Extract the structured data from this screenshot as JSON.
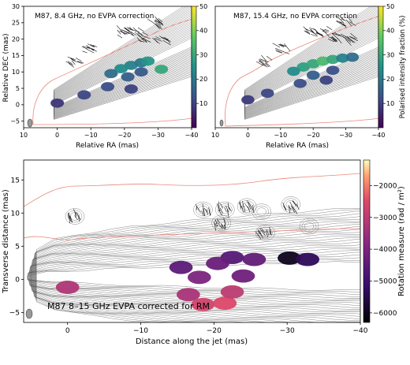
{
  "chart_data": [
    {
      "type": "heatmap",
      "title": "M87, 8.4 GHz, no EVPA correction",
      "xlabel": "Relative RA (mas)",
      "ylabel": "Relative DEC (mas)",
      "xlim": [
        10,
        -40
      ],
      "ylim": [
        -7,
        30
      ],
      "xticks": [
        10,
        0,
        -10,
        -20,
        -30,
        -40
      ],
      "xtick_labels": [
        "10",
        "0",
        "−10",
        "−20",
        "−30",
        "−40"
      ],
      "yticks": [
        -5,
        0,
        5,
        10,
        15,
        20,
        25,
        30
      ],
      "ytick_labels": [
        "−5",
        "0",
        "5",
        "10",
        "15",
        "20",
        "25",
        "30"
      ],
      "colorbar": {
        "ticks": [
          10,
          20,
          30,
          40,
          50
        ],
        "range": [
          0,
          50
        ],
        "colormap": "viridis"
      },
      "pol_blobs": [
        {
          "x": -22,
          "y": 12.0,
          "val": 22
        },
        {
          "x": -25,
          "y": 12.8,
          "val": 20
        },
        {
          "x": -19,
          "y": 11.0,
          "val": 24
        },
        {
          "x": -16,
          "y": 9.5,
          "val": 18
        },
        {
          "x": -27,
          "y": 13.3,
          "val": 26
        },
        {
          "x": -21,
          "y": 8.5,
          "val": 15
        },
        {
          "x": -25,
          "y": 10.0,
          "val": 14
        },
        {
          "x": -15,
          "y": 5.5,
          "val": 12
        },
        {
          "x": -22,
          "y": 4.8,
          "val": 10
        },
        {
          "x": -31,
          "y": 10.8,
          "val": 30
        },
        {
          "x": 0,
          "y": 0.5,
          "val": 8
        },
        {
          "x": -8,
          "y": 3.0,
          "val": 11
        }
      ]
    },
    {
      "type": "heatmap",
      "title": "M87, 15.4 GHz, no EVPA correction",
      "xlabel": "Relative RA (mas)",
      "ylabel": "",
      "xlim": [
        10,
        -40
      ],
      "ylim": [
        -7,
        30
      ],
      "xticks": [
        10,
        0,
        -10,
        -20,
        -30,
        -40
      ],
      "xtick_labels": [
        "10",
        "0",
        "−10",
        "−20",
        "−30",
        "−40"
      ],
      "colorbar": {
        "label": "Polarised intensity fraction (%)",
        "ticks": [
          10,
          20,
          30,
          40,
          50
        ],
        "range": [
          0,
          50
        ],
        "colormap": "viridis"
      },
      "pol_blobs": [
        {
          "x": -17,
          "y": 11.5,
          "val": 28
        },
        {
          "x": -20,
          "y": 12.5,
          "val": 30
        },
        {
          "x": -23,
          "y": 13.3,
          "val": 34
        },
        {
          "x": -26,
          "y": 13.8,
          "val": 30
        },
        {
          "x": -29,
          "y": 14.2,
          "val": 22
        },
        {
          "x": -14,
          "y": 10.2,
          "val": 24
        },
        {
          "x": -20,
          "y": 9.0,
          "val": 15
        },
        {
          "x": -26,
          "y": 10.5,
          "val": 12
        },
        {
          "x": -16,
          "y": 6.5,
          "val": 12
        },
        {
          "x": -24,
          "y": 7.5,
          "val": 10
        },
        {
          "x": 0,
          "y": 1.5,
          "val": 9
        },
        {
          "x": -6,
          "y": 3.5,
          "val": 11
        },
        {
          "x": -32,
          "y": 14.5,
          "val": 18
        }
      ]
    },
    {
      "type": "heatmap",
      "title": "M87 8–15 GHz EVPA corrected for RM",
      "xlabel": "Distance along the jet (mas)",
      "ylabel": "Transverse distance (mas)",
      "xlim": [
        6,
        -40
      ],
      "ylim": [
        -6.5,
        18
      ],
      "xticks": [
        0,
        -10,
        -20,
        -30,
        -40
      ],
      "xtick_labels": [
        "0",
        "−10",
        "−20",
        "−30",
        "−40"
      ],
      "yticks": [
        -5,
        0,
        5,
        10,
        15
      ],
      "ytick_labels": [
        "−5",
        "0",
        "5",
        "10",
        "15"
      ],
      "colorbar": {
        "label": "Rotation measure (rad / m²)",
        "ticks": [
          -6000,
          -5000,
          -4000,
          -3000,
          -2000
        ],
        "tick_labels": [
          "−6000",
          "−5000",
          "−4000",
          "−3000",
          "−2000"
        ],
        "range": [
          -6300,
          -1200
        ],
        "colormap": "magma"
      },
      "rm_blobs": [
        {
          "x": -22.5,
          "y": 3.3,
          "val": -4600
        },
        {
          "x": -25.5,
          "y": 3.0,
          "val": -4400
        },
        {
          "x": -20.5,
          "y": 2.4,
          "val": -4300
        },
        {
          "x": -15.5,
          "y": 1.8,
          "val": -4500
        },
        {
          "x": -24.0,
          "y": 0.5,
          "val": -4200
        },
        {
          "x": -18.0,
          "y": 0.3,
          "val": -4000
        },
        {
          "x": -16.5,
          "y": -2.3,
          "val": -3300
        },
        {
          "x": -18.5,
          "y": -3.8,
          "val": -2700
        },
        {
          "x": -21.5,
          "y": -3.6,
          "val": -2500
        },
        {
          "x": -22.5,
          "y": -1.9,
          "val": -3000
        },
        {
          "x": 0.0,
          "y": -1.2,
          "val": -3200
        },
        {
          "x": -30.3,
          "y": 3.2,
          "val": -6000
        },
        {
          "x": -32.8,
          "y": 3.0,
          "val": -5300
        }
      ]
    }
  ]
}
